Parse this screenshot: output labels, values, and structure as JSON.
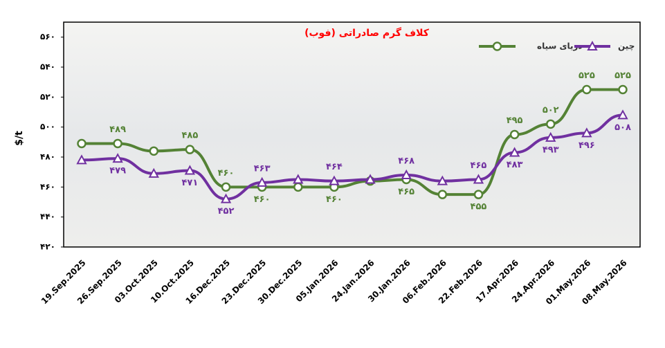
{
  "chart_data": {
    "type": "line",
    "title": "کلاف گرم صادراتی (فوب)",
    "y_label": "$/t",
    "categories": [
      "19.Sep.2025",
      "26.Sep.2025",
      "03.Oct.2025",
      "10.Oct.2025",
      "16.Dec.2025",
      "23.Dec.2025",
      "30.Dec.2025",
      "05.Jan.2026",
      "24.Jan.2026",
      "30.Jan.2026",
      "06.Feb.2026",
      "22.Feb.2026",
      "17.Apr.2026",
      "24.Apr.2026",
      "01.May.2026",
      "08.May.2026"
    ],
    "series": [
      {
        "name": "دریای سیاه",
        "color": "#548235",
        "marker": "circle",
        "values": [
          489,
          489,
          484,
          485,
          460,
          460,
          460,
          460,
          464,
          465,
          455,
          455,
          495,
          502,
          525,
          525
        ],
        "value_labels": [
          null,
          "۴۸۹",
          null,
          "۴۸۵",
          "۴۶۰",
          "۴۶۰",
          null,
          "۴۶۰",
          null,
          "۴۶۵",
          null,
          "۴۵۵",
          "۴۹۵",
          "۵۰۲",
          "۵۲۵",
          "۵۲۵"
        ]
      },
      {
        "name": "چین",
        "color": "#7030a0",
        "marker": "triangle",
        "values": [
          478,
          479,
          469,
          471,
          452,
          463,
          465,
          464,
          465,
          468,
          464,
          465,
          483,
          493,
          496,
          508
        ],
        "value_labels": [
          null,
          "۴۷۹",
          null,
          "۴۷۱",
          "۴۵۲",
          "۴۶۳",
          null,
          "۴۶۴",
          null,
          "۴۶۸",
          null,
          "۴۶۵",
          "۴۸۳",
          "۴۹۳",
          "۴۹۶",
          "۵۰۸"
        ]
      }
    ],
    "ylim": [
      420,
      570
    ],
    "yticks": [
      {
        "value": 420,
        "label": "۴۲۰"
      },
      {
        "value": 440,
        "label": "۴۴۰"
      },
      {
        "value": 460,
        "label": "۴۶۰"
      },
      {
        "value": 480,
        "label": "۴۸۰"
      },
      {
        "value": 500,
        "label": "۵۰۰"
      },
      {
        "value": 520,
        "label": "۵۲۰"
      },
      {
        "value": 540,
        "label": "۵۴۰"
      },
      {
        "value": 560,
        "label": "۵۶۰"
      }
    ],
    "grid": false
  }
}
